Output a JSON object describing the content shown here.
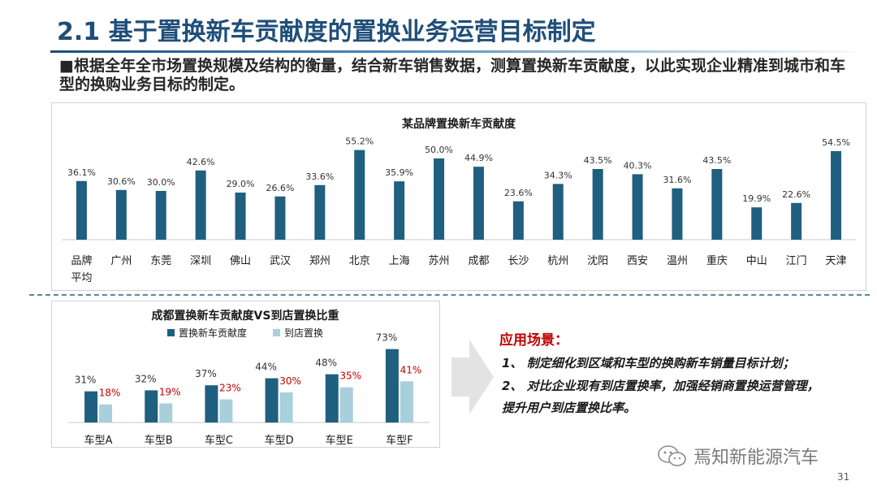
{
  "page": {
    "title": "2.1 基于置换新车贡献度的置换业务运营目标制定",
    "intro": "■根据全年全市场置换规模及结构的衡量，结合新车销售数据，测算置换新车贡献度，以此实现企业精准到城市和车型的换购业务目标的制定。",
    "page_number": "31"
  },
  "scenarios": {
    "title": "应用场景：",
    "items": [
      "1、 制定细化到区域和车型的换购新车销量目标计划；",
      "2、 对比企业现有到店置换率，加强经销商置换运营管理，",
      "提升用户到店置换比率。"
    ]
  },
  "watermark": {
    "text": "焉知新能源汽车",
    "icon": "wechat-icon"
  },
  "colors": {
    "bar_dark": "#1f5f7f",
    "bar_light": "#a9cfdc",
    "red_label": "#c00000",
    "title_blue": "#1f4e79"
  },
  "chart_data": [
    {
      "type": "bar",
      "title": "某品牌置换新车贡献度",
      "categories": [
        "品牌平均",
        "广州",
        "东莞",
        "深圳",
        "佛山",
        "武汉",
        "郑州",
        "北京",
        "上海",
        "苏州",
        "成都",
        "长沙",
        "杭州",
        "沈阳",
        "西安",
        "温州",
        "重庆",
        "中山",
        "江门",
        "天津"
      ],
      "category_lines": [
        [
          "品牌",
          "平均"
        ],
        [
          "广州"
        ],
        [
          "东莞"
        ],
        [
          "深圳"
        ],
        [
          "佛山"
        ],
        [
          "武汉"
        ],
        [
          "郑州"
        ],
        [
          "北京"
        ],
        [
          "上海"
        ],
        [
          "苏州"
        ],
        [
          "成都"
        ],
        [
          "长沙"
        ],
        [
          "杭州"
        ],
        [
          "沈阳"
        ],
        [
          "西安"
        ],
        [
          "温州"
        ],
        [
          "重庆"
        ],
        [
          "中山"
        ],
        [
          "江门"
        ],
        [
          "天津"
        ]
      ],
      "values": [
        36.1,
        30.6,
        30.0,
        42.6,
        29.0,
        26.6,
        33.6,
        55.2,
        35.9,
        50.0,
        44.9,
        23.6,
        34.3,
        43.5,
        40.3,
        31.6,
        43.5,
        19.9,
        22.6,
        54.5
      ],
      "data_labels": [
        "36.1%",
        "30.6%",
        "30.0%",
        "42.6%",
        "29.0%",
        "26.6%",
        "33.6%",
        "55.2%",
        "35.9%",
        "50.0%",
        "44.9%",
        "23.6%",
        "34.3%",
        "43.5%",
        "40.3%",
        "31.6%",
        "43.5%",
        "19.9%",
        "22.6%",
        "54.5%"
      ],
      "unit": "%",
      "ylim": [
        0,
        60
      ],
      "grid": false
    },
    {
      "type": "bar",
      "title": "成都置换新车贡献度VS到店置换比重",
      "categories": [
        "车型A",
        "车型B",
        "车型C",
        "车型D",
        "车型E",
        "车型F"
      ],
      "series": [
        {
          "name": "置换新车贡献度",
          "values": [
            31,
            32,
            37,
            44,
            48,
            73
          ],
          "labels": [
            "31%",
            "32%",
            "37%",
            "44%",
            "48%",
            "73%"
          ],
          "color": "#1f5f7f",
          "label_color": "#333333"
        },
        {
          "name": "到店置换",
          "values": [
            18,
            19,
            23,
            30,
            35,
            41
          ],
          "labels": [
            "18%",
            "19%",
            "23%",
            "30%",
            "35%",
            "41%"
          ],
          "color": "#a9cfdc",
          "label_color": "#c00000"
        }
      ],
      "unit": "%",
      "ylim": [
        0,
        80
      ],
      "legend": "top",
      "grid": false
    }
  ]
}
